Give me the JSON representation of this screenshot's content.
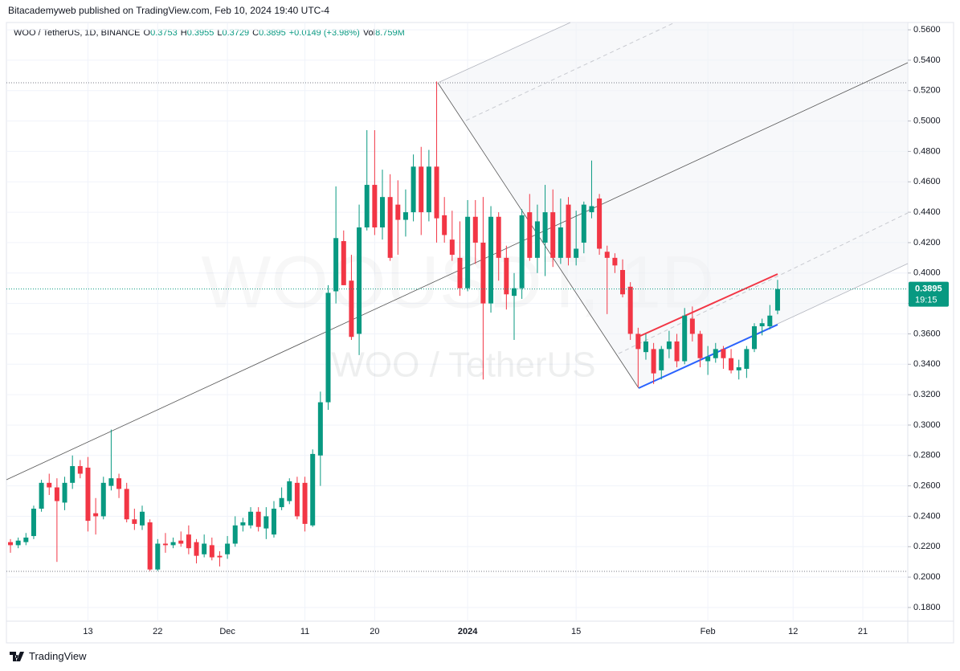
{
  "header": {
    "publisher_line": "Bitacademyweb published on TradingView.com, Feb 10, 2024 19:40 UTC-4"
  },
  "footer": {
    "brand": "TradingView"
  },
  "chart_data": {
    "type": "candlestick",
    "symbol": "WOO / TetherUS, 1D, BINANCE",
    "ohlc_labels": [
      "O",
      "H",
      "L",
      "C"
    ],
    "change": "+0.0149 (+3.98%)",
    "volume_label": "Vol",
    "volume": "8.759M",
    "watermark": "WOOUSDT, 1D",
    "watermark_pair": "WOO / TetherUS",
    "countdown": "19:15",
    "up_color": "#089981",
    "down_color": "#f23645",
    "xlim": [
      -0.52,
      115.8
    ],
    "ylim": [
      0.171,
      0.5648
    ],
    "xticks": [
      {
        "value": 10,
        "label": "13"
      },
      {
        "value": 19,
        "label": "22"
      },
      {
        "value": 28,
        "label": "Dec"
      },
      {
        "value": 38,
        "label": "11"
      },
      {
        "value": 47,
        "label": "20"
      },
      {
        "value": 59,
        "label": "2024"
      },
      {
        "value": 73,
        "label": "15"
      },
      {
        "value": 90,
        "label": "Feb"
      },
      {
        "value": 101,
        "label": "12"
      },
      {
        "value": 110,
        "label": "21"
      }
    ],
    "yticks": [
      {
        "value": 0.18,
        "label": "0.1800"
      },
      {
        "value": 0.2,
        "label": "0.2000"
      },
      {
        "value": 0.22,
        "label": "0.2200"
      },
      {
        "value": 0.24,
        "label": "0.2400"
      },
      {
        "value": 0.26,
        "label": "0.2600"
      },
      {
        "value": 0.28,
        "label": "0.2800"
      },
      {
        "value": 0.3,
        "label": "0.3000"
      },
      {
        "value": 0.32,
        "label": "0.3200"
      },
      {
        "value": 0.34,
        "label": "0.3400"
      },
      {
        "value": 0.36,
        "label": "0.3600"
      },
      {
        "value": 0.38,
        "label": "0.3800"
      },
      {
        "value": 0.4,
        "label": "0.4000"
      },
      {
        "value": 0.42,
        "label": "0.4200"
      },
      {
        "value": 0.44,
        "label": "0.4400"
      },
      {
        "value": 0.46,
        "label": "0.4600"
      },
      {
        "value": 0.48,
        "label": "0.4800"
      },
      {
        "value": 0.5,
        "label": "0.5000"
      },
      {
        "value": 0.52,
        "label": "0.5200"
      },
      {
        "value": 0.54,
        "label": "0.5400"
      },
      {
        "value": 0.56,
        "label": "0.5600"
      }
    ],
    "grid": true,
    "open": [
      0.223,
      0.221,
      0.223,
      0.227,
      0.245,
      0.262,
      0.259,
      0.249,
      0.262,
      0.273,
      0.272,
      0.242,
      0.24,
      0.26,
      0.265,
      0.258,
      0.238,
      0.234,
      0.236,
      0.205,
      0.222,
      0.221,
      0.224,
      0.228,
      0.223,
      0.215,
      0.221,
      0.214,
      0.215,
      0.222,
      0.234,
      0.234,
      0.243,
      0.232,
      0.228,
      0.246,
      0.25,
      0.262,
      0.262,
      0.234,
      0.28,
      0.315,
      0.388,
      0.421,
      0.395,
      0.36,
      0.43,
      0.458,
      0.43,
      0.45,
      0.445,
      0.435,
      0.44,
      0.47,
      0.44,
      0.47,
      0.438,
      0.422,
      0.41,
      0.39,
      0.437,
      0.42,
      0.38,
      0.437,
      0.41,
      0.385,
      0.39,
      0.44,
      0.41,
      0.42,
      0.44,
      0.41,
      0.445,
      0.41,
      0.42,
      0.44,
      0.449,
      0.414,
      0.41,
      0.402,
      0.391,
      0.36,
      0.348,
      0.35,
      0.336,
      0.35,
      0.355,
      0.342,
      0.37,
      0.36,
      0.342,
      0.344,
      0.35,
      0.344,
      0.336,
      0.337,
      0.35,
      0.365,
      0.365,
      0.3753
    ],
    "high": [
      0.225,
      0.226,
      0.229,
      0.247,
      0.264,
      0.268,
      0.265,
      0.266,
      0.28,
      0.277,
      0.279,
      0.252,
      0.266,
      0.297,
      0.268,
      0.262,
      0.245,
      0.247,
      0.238,
      0.225,
      0.229,
      0.226,
      0.23,
      0.234,
      0.225,
      0.228,
      0.226,
      0.217,
      0.227,
      0.24,
      0.239,
      0.246,
      0.246,
      0.246,
      0.25,
      0.259,
      0.265,
      0.266,
      0.266,
      0.284,
      0.322,
      0.392,
      0.457,
      0.428,
      0.412,
      0.445,
      0.494,
      0.494,
      0.468,
      0.465,
      0.461,
      0.455,
      0.478,
      0.483,
      0.481,
      0.526,
      0.45,
      0.441,
      0.434,
      0.448,
      0.448,
      0.45,
      0.444,
      0.44,
      0.418,
      0.4,
      0.442,
      0.452,
      0.445,
      0.458,
      0.455,
      0.449,
      0.45,
      0.441,
      0.447,
      0.474,
      0.452,
      0.418,
      0.413,
      0.409,
      0.394,
      0.364,
      0.36,
      0.354,
      0.352,
      0.362,
      0.36,
      0.377,
      0.378,
      0.362,
      0.352,
      0.354,
      0.352,
      0.35,
      0.343,
      0.352,
      0.367,
      0.37,
      0.379,
      0.3955
    ],
    "low": [
      0.216,
      0.219,
      0.221,
      0.225,
      0.243,
      0.254,
      0.21,
      0.244,
      0.258,
      0.265,
      0.23,
      0.228,
      0.238,
      0.257,
      0.252,
      0.236,
      0.231,
      0.231,
      0.204,
      0.204,
      0.216,
      0.219,
      0.22,
      0.215,
      0.209,
      0.213,
      0.211,
      0.207,
      0.212,
      0.22,
      0.23,
      0.232,
      0.23,
      0.225,
      0.226,
      0.244,
      0.248,
      0.238,
      0.23,
      0.233,
      0.26,
      0.31,
      0.38,
      0.392,
      0.356,
      0.346,
      0.428,
      0.425,
      0.422,
      0.408,
      0.412,
      0.424,
      0.434,
      0.425,
      0.434,
      0.42,
      0.42,
      0.408,
      0.385,
      0.388,
      0.406,
      0.33,
      0.374,
      0.395,
      0.376,
      0.356,
      0.383,
      0.408,
      0.4,
      0.398,
      0.404,
      0.406,
      0.405,
      0.405,
      0.413,
      0.436,
      0.412,
      0.373,
      0.4,
      0.384,
      0.356,
      0.325,
      0.343,
      0.327,
      0.33,
      0.344,
      0.338,
      0.34,
      0.355,
      0.338,
      0.333,
      0.341,
      0.337,
      0.334,
      0.33,
      0.331,
      0.348,
      0.359,
      0.363,
      0.3729
    ],
    "close": [
      0.221,
      0.224,
      0.226,
      0.245,
      0.262,
      0.259,
      0.25,
      0.262,
      0.273,
      0.268,
      0.237,
      0.24,
      0.262,
      0.265,
      0.258,
      0.238,
      0.235,
      0.243,
      0.205,
      0.222,
      0.221,
      0.223,
      0.222,
      0.219,
      0.214,
      0.222,
      0.213,
      0.213,
      0.222,
      0.234,
      0.236,
      0.243,
      0.233,
      0.24,
      0.245,
      0.252,
      0.263,
      0.24,
      0.235,
      0.281,
      0.315,
      0.387,
      0.423,
      0.392,
      0.358,
      0.43,
      0.458,
      0.43,
      0.45,
      0.41,
      0.435,
      0.44,
      0.47,
      0.44,
      0.47,
      0.436,
      0.425,
      0.412,
      0.39,
      0.437,
      0.42,
      0.38,
      0.437,
      0.41,
      0.386,
      0.39,
      0.438,
      0.41,
      0.434,
      0.44,
      0.41,
      0.43,
      0.41,
      0.416,
      0.445,
      0.444,
      0.416,
      0.41,
      0.405,
      0.386,
      0.36,
      0.35,
      0.355,
      0.334,
      0.35,
      0.355,
      0.342,
      0.372,
      0.36,
      0.344,
      0.345,
      0.35,
      0.344,
      0.336,
      0.338,
      0.35,
      0.365,
      0.367,
      0.372,
      0.3895
    ]
  }
}
